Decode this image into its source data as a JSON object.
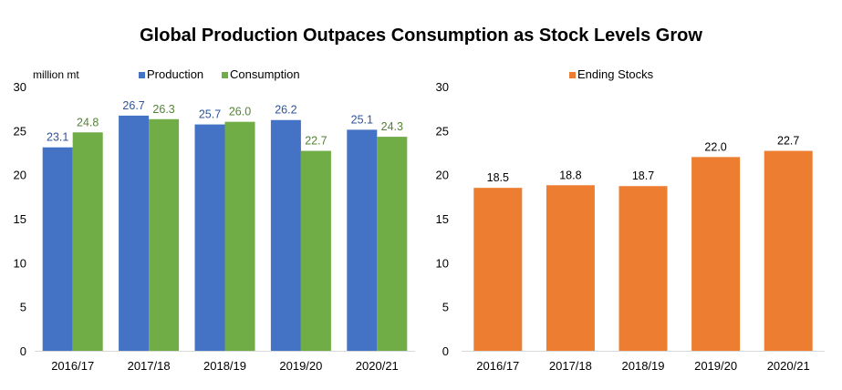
{
  "title": "Global Production Outpaces Consumption as Stock Levels Grow",
  "chart_data": [
    {
      "type": "bar",
      "unit_label": "million mt",
      "categories": [
        "2016/17",
        "2017/18",
        "2018/19",
        "2019/20",
        "2020/21"
      ],
      "ylim": [
        0,
        30
      ],
      "yticks": [
        0,
        5,
        10,
        15,
        20,
        25,
        30
      ],
      "grid": false,
      "legend_position": "top",
      "series": [
        {
          "name": "Production",
          "color": "#4472C4",
          "label_color": "#2F5597",
          "values": [
            23.1,
            26.7,
            25.7,
            26.2,
            25.1
          ],
          "labels": [
            "23.1",
            "26.7",
            "25.7",
            "26.2",
            "25.1"
          ]
        },
        {
          "name": "Consumption",
          "color": "#70AD47",
          "label_color": "#548235",
          "values": [
            24.8,
            26.3,
            26.0,
            22.7,
            24.3
          ],
          "labels": [
            "24.8",
            "26.3",
            "26.0",
            "22.7",
            "24.3"
          ]
        }
      ]
    },
    {
      "type": "bar",
      "categories": [
        "2016/17",
        "2017/18",
        "2018/19",
        "2019/20",
        "2020/21"
      ],
      "ylim": [
        0,
        30
      ],
      "yticks": [
        0,
        5,
        10,
        15,
        20,
        25,
        30
      ],
      "grid": false,
      "legend_position": "top",
      "series": [
        {
          "name": "Ending Stocks",
          "color": "#ED7D31",
          "label_color": "#000000",
          "values": [
            18.5,
            18.8,
            18.7,
            22.0,
            22.7
          ],
          "labels": [
            "18.5",
            "18.8",
            "18.7",
            "22.0",
            "22.7"
          ]
        }
      ]
    }
  ]
}
